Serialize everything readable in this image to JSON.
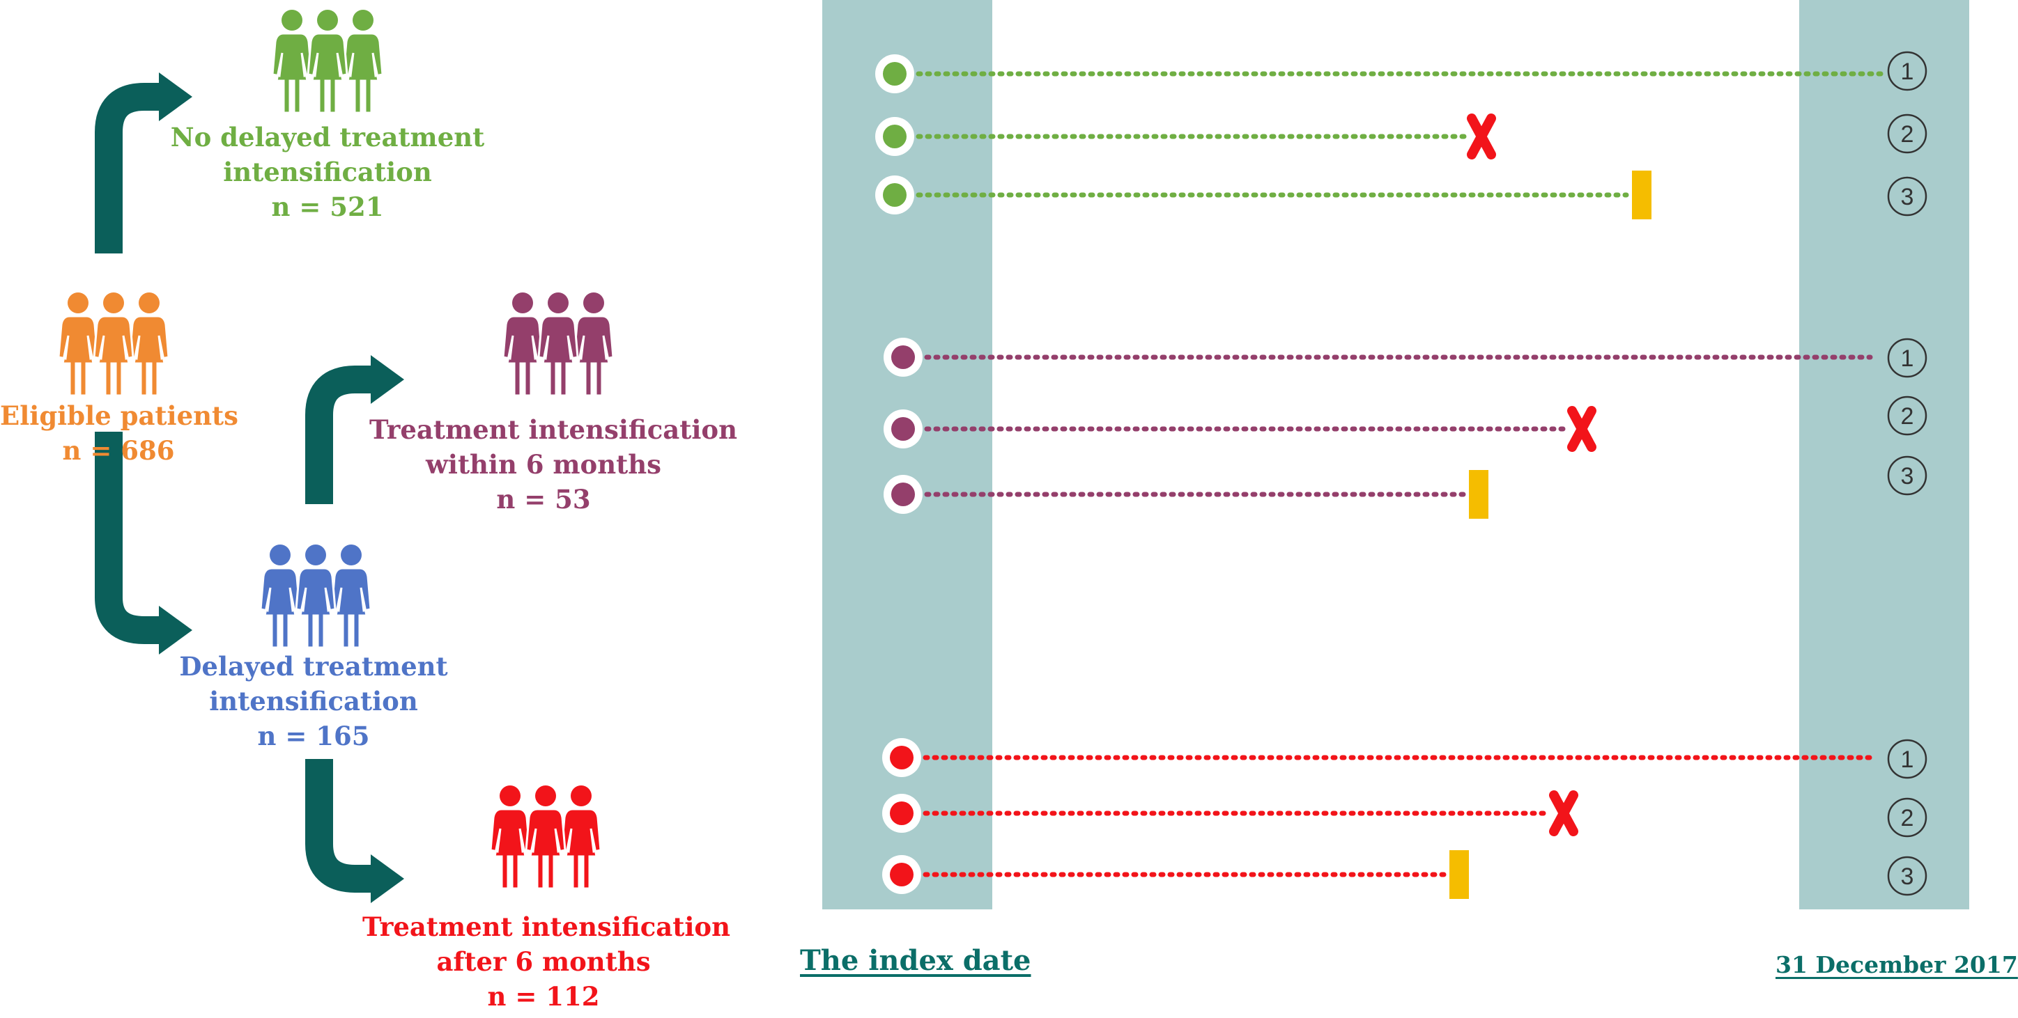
{
  "colors": {
    "orange": "#f08a32",
    "green": "#6fae43",
    "purple": "#943f6b",
    "blue": "#4f74c7",
    "red": "#f2141a",
    "teal_arrow": "#0b5f5a",
    "band": "#a9cccc",
    "yellow": "#f5bd00"
  },
  "icons": {
    "people": "people-group-icon",
    "censor_event": "red-x-icon",
    "censor_end": "yellow-bar-icon",
    "endpoint": "numbered-circle-icon"
  },
  "flow": {
    "eligible": {
      "line1": "Eligible patients",
      "line2": "n = 686"
    },
    "no_delay": {
      "line1": "No delayed treatment",
      "line2": "intensification",
      "line3": "n = 521"
    },
    "delayed": {
      "line1": "Delayed treatment",
      "line2": "intensification",
      "line3": "n = 165"
    },
    "within6": {
      "line1": "Treatment intensification",
      "line2": "within 6 months",
      "line3": "n = 53"
    },
    "after6": {
      "line1": "Treatment intensification",
      "line2": "after 6 months",
      "line3": "n = 112"
    }
  },
  "timeline": {
    "index_label": "The index date",
    "end_label": "31 December 2017",
    "groups": [
      {
        "color_key": "green",
        "rows": [
          {
            "endpoint": "1",
            "end": "full",
            "censor": "none"
          },
          {
            "endpoint": "2",
            "end": "event",
            "censor": "x"
          },
          {
            "endpoint": "3",
            "end": "censored",
            "censor": "bar"
          }
        ]
      },
      {
        "color_key": "purple",
        "rows": [
          {
            "endpoint": "1",
            "end": "full",
            "censor": "none"
          },
          {
            "endpoint": "2",
            "end": "event",
            "censor": "x"
          },
          {
            "endpoint": "3",
            "end": "censored",
            "censor": "bar"
          }
        ]
      },
      {
        "color_key": "red",
        "rows": [
          {
            "endpoint": "1",
            "end": "full",
            "censor": "none"
          },
          {
            "endpoint": "2",
            "end": "event",
            "censor": "x"
          },
          {
            "endpoint": "3",
            "end": "censored",
            "censor": "bar"
          }
        ]
      }
    ]
  }
}
